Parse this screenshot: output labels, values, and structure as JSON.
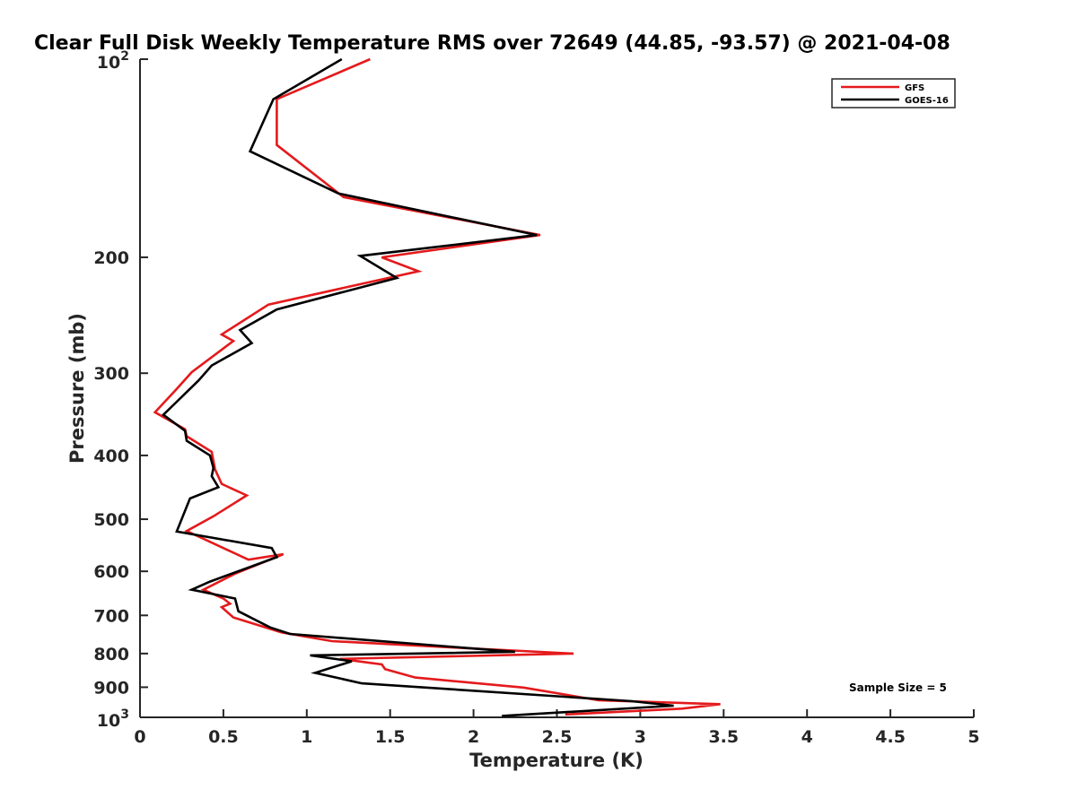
{
  "chart_data": {
    "type": "line",
    "title": "Clear Full Disk Weekly Temperature RMS over 72649 (44.85, -93.57) @ 2021-04-08",
    "xlabel": "Temperature (K)",
    "ylabel": "Pressure (mb)",
    "xlim": [
      0,
      5
    ],
    "ylim": [
      1000,
      100
    ],
    "yscale": "log",
    "y_reversed": true,
    "x_ticks": [
      "0",
      "0.5",
      "1",
      "1.5",
      "2",
      "2.5",
      "3",
      "3.5",
      "4",
      "4.5",
      "5"
    ],
    "y_ticks": [
      {
        "value": 100,
        "base": "10",
        "exp": "2"
      },
      {
        "value": 200,
        "label": "200"
      },
      {
        "value": 300,
        "label": "300"
      },
      {
        "value": 400,
        "label": "400"
      },
      {
        "value": 500,
        "label": "500"
      },
      {
        "value": 600,
        "label": "600"
      },
      {
        "value": 700,
        "label": "700"
      },
      {
        "value": 800,
        "label": "800"
      },
      {
        "value": 900,
        "label": "900"
      },
      {
        "value": 1000,
        "base": "10",
        "exp": "3"
      }
    ],
    "legend_position": "top-right",
    "annotation": "Sample Size = 5",
    "series": [
      {
        "name": "GFS",
        "color": "#e41a1c",
        "points": [
          [
            1.38,
            100
          ],
          [
            0.82,
            115
          ],
          [
            0.82,
            135
          ],
          [
            1.22,
            162
          ],
          [
            2.4,
            185
          ],
          [
            1.45,
            200
          ],
          [
            1.67,
            210
          ],
          [
            0.77,
            236
          ],
          [
            0.49,
            262
          ],
          [
            0.56,
            268
          ],
          [
            0.31,
            299
          ],
          [
            0.22,
            317
          ],
          [
            0.09,
            344
          ],
          [
            0.27,
            365
          ],
          [
            0.28,
            374
          ],
          [
            0.43,
            395
          ],
          [
            0.45,
            420
          ],
          [
            0.49,
            442
          ],
          [
            0.64,
            460
          ],
          [
            0.44,
            495
          ],
          [
            0.28,
            521
          ],
          [
            0.65,
            576
          ],
          [
            0.86,
            565
          ],
          [
            0.57,
            605
          ],
          [
            0.38,
            640
          ],
          [
            0.5,
            660
          ],
          [
            0.54,
            672
          ],
          [
            0.49,
            680
          ],
          [
            0.56,
            705
          ],
          [
            0.85,
            743
          ],
          [
            1.15,
            766
          ],
          [
            1.95,
            785
          ],
          [
            2.6,
            800
          ],
          [
            1.2,
            815
          ],
          [
            1.45,
            831
          ],
          [
            1.47,
            845
          ],
          [
            1.65,
            870
          ],
          [
            2.3,
            901
          ],
          [
            2.75,
            942
          ],
          [
            3.48,
            955
          ],
          [
            3.25,
            970
          ],
          [
            2.55,
            990
          ]
        ]
      },
      {
        "name": "GOES-16",
        "color": "#000000",
        "points": [
          [
            1.21,
            100
          ],
          [
            0.8,
            115
          ],
          [
            0.66,
            138
          ],
          [
            1.19,
            160
          ],
          [
            2.38,
            185
          ],
          [
            1.32,
            199
          ],
          [
            1.54,
            215
          ],
          [
            0.82,
            240
          ],
          [
            0.6,
            258
          ],
          [
            0.67,
            270
          ],
          [
            0.43,
            292
          ],
          [
            0.35,
            308
          ],
          [
            0.14,
            347
          ],
          [
            0.27,
            367
          ],
          [
            0.28,
            380
          ],
          [
            0.42,
            400
          ],
          [
            0.44,
            418
          ],
          [
            0.43,
            430
          ],
          [
            0.47,
            447
          ],
          [
            0.3,
            465
          ],
          [
            0.22,
            522
          ],
          [
            0.79,
            553
          ],
          [
            0.82,
            571
          ],
          [
            0.42,
            622
          ],
          [
            0.31,
            640
          ],
          [
            0.57,
            660
          ],
          [
            0.59,
            690
          ],
          [
            0.78,
            730
          ],
          [
            0.9,
            747
          ],
          [
            2.25,
            795
          ],
          [
            1.02,
            805
          ],
          [
            1.27,
            822
          ],
          [
            1.05,
            856
          ],
          [
            1.33,
            888
          ],
          [
            2.95,
            945
          ],
          [
            3.2,
            960
          ],
          [
            2.17,
            995
          ]
        ]
      }
    ]
  }
}
